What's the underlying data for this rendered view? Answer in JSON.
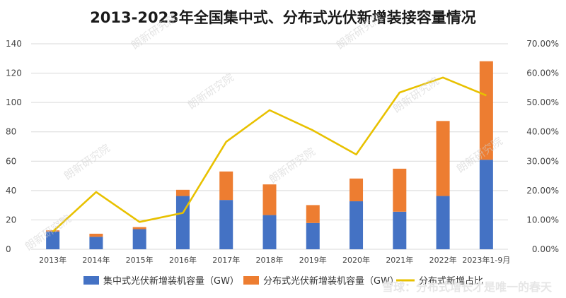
{
  "chart_data": {
    "type": "bar",
    "title": "2013-2023年全国集中式、分布式光伏新增装接容量情况",
    "categories": [
      "2013年",
      "2014年",
      "2015年",
      "2016年",
      "2017年",
      "2018年",
      "2019年",
      "2020年",
      "2021年",
      "2022年",
      "2023年1-9月"
    ],
    "series": [
      {
        "name": "集中式光伏新增装机容量（GW）",
        "type": "bar",
        "stack": "capacity",
        "axis": "left",
        "color": "#4472c4",
        "values": [
          12.1,
          8.5,
          13.7,
          36.3,
          33.6,
          23.3,
          17.9,
          32.7,
          25.6,
          36.3,
          61.0
        ]
      },
      {
        "name": "分布式光伏新增装机容量（GW）",
        "type": "bar",
        "stack": "capacity",
        "axis": "left",
        "color": "#ed7d31",
        "values": [
          0.8,
          2.1,
          1.4,
          4.2,
          19.4,
          20.9,
          12.2,
          15.5,
          29.3,
          51.1,
          67.1
        ]
      },
      {
        "name": "分布式新增占比",
        "type": "line",
        "axis": "right",
        "color": "#e8c100",
        "values": [
          6.0,
          19.5,
          9.3,
          12.4,
          36.6,
          47.4,
          40.5,
          32.3,
          53.4,
          58.5,
          52.4
        ]
      }
    ],
    "ylim_left": [
      0,
      140
    ],
    "yticks_left": [
      "0",
      "20",
      "40",
      "60",
      "80",
      "100",
      "120",
      "140"
    ],
    "ylim_right": [
      0,
      70
    ],
    "yticks_right": [
      "0.00%",
      "10.00%",
      "20.00%",
      "30.00%",
      "40.00%",
      "50.00%",
      "60.00%",
      "70.00%"
    ],
    "grid": true,
    "legend_position": "bottom"
  },
  "watermark": "朗新研究院",
  "brand_watermark": "雪球：分布式增长才是唯一的春天"
}
